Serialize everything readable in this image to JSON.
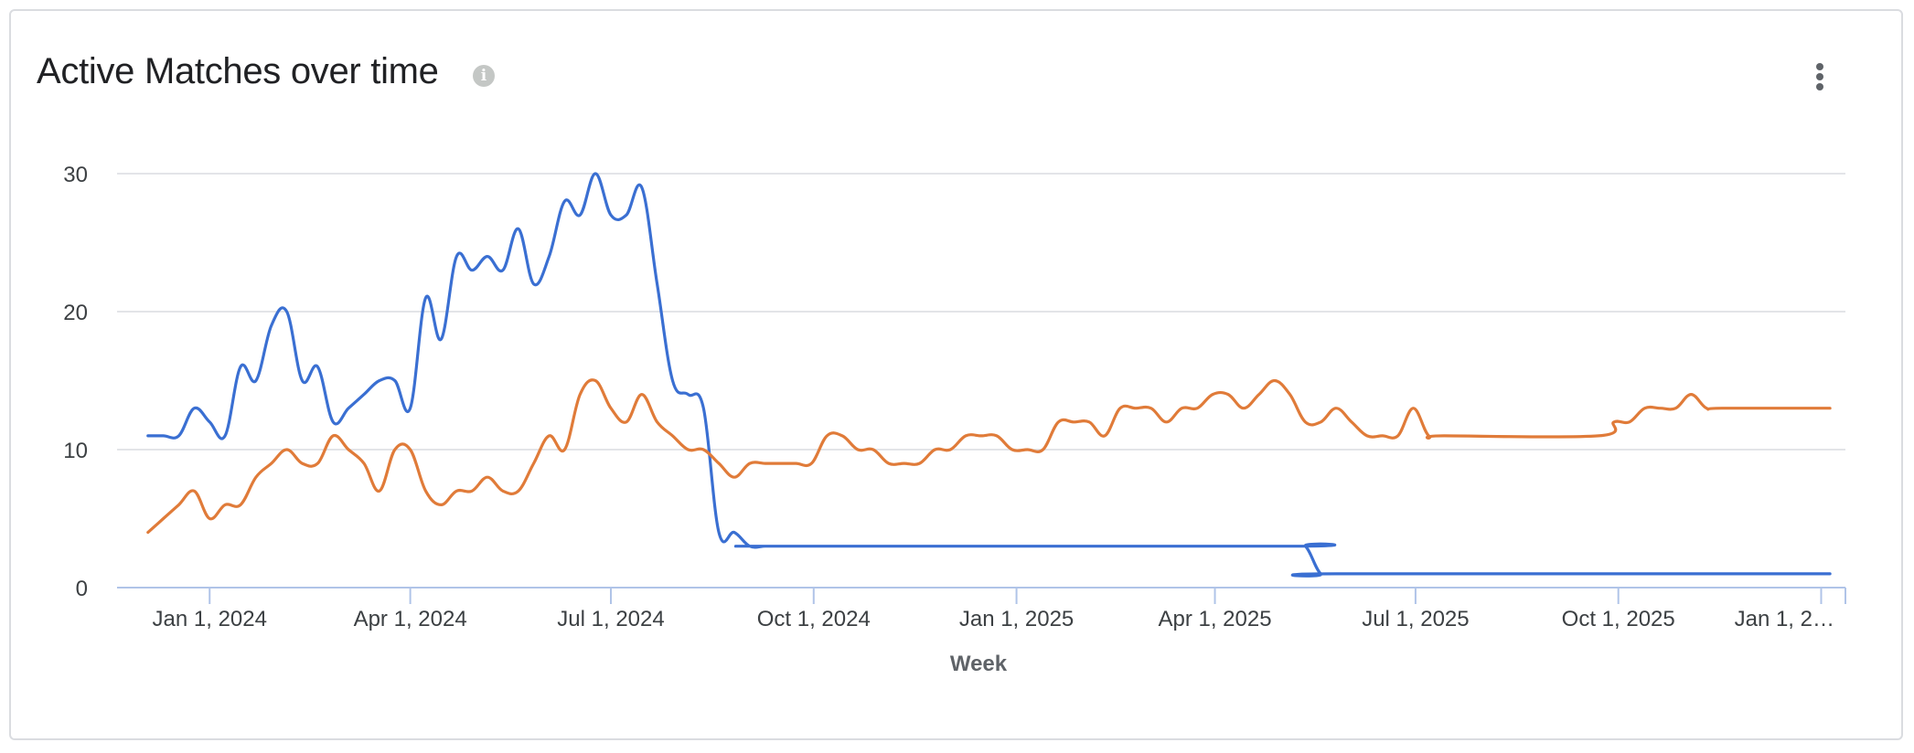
{
  "header": {
    "title": "Active Matches over time",
    "info_icon": "info-icon",
    "menu_icon": "more-vert-icon"
  },
  "chart_data": {
    "type": "line",
    "title": "Active Matches over time",
    "xlabel": "Week",
    "ylabel": "",
    "ylim": [
      0,
      30
    ],
    "yticks": [
      0,
      10,
      20,
      30
    ],
    "xlim": [
      "2023-11-20",
      "2026-01-12"
    ],
    "x_tick_dates": [
      "2024-01-01",
      "2024-04-01",
      "2024-07-01",
      "2024-10-01",
      "2025-01-01",
      "2025-04-01",
      "2025-07-01",
      "2025-10-01",
      "2026-01-01"
    ],
    "x_tick_labels": [
      "Jan 1, 2024",
      "Apr 1, 2024",
      "Jul 1, 2024",
      "Oct 1, 2024",
      "Jan 1, 2025",
      "Apr 1, 2025",
      "Jul 1, 2025",
      "Oct 1, 2025",
      "Jan 1, 2…"
    ],
    "grid": true,
    "legend": "none",
    "series": [
      {
        "color": "#3a6fd2",
        "points": [
          [
            "2023-12-04",
            11
          ],
          [
            "2023-12-11",
            11
          ],
          [
            "2023-12-18",
            11
          ],
          [
            "2023-12-25",
            13
          ],
          [
            "2024-01-01",
            12
          ],
          [
            "2024-01-08",
            11
          ],
          [
            "2024-01-15",
            16
          ],
          [
            "2024-01-22",
            15
          ],
          [
            "2024-01-29",
            19
          ],
          [
            "2024-02-05",
            20
          ],
          [
            "2024-02-12",
            15
          ],
          [
            "2024-02-19",
            16
          ],
          [
            "2024-02-26",
            12
          ],
          [
            "2024-03-04",
            13
          ],
          [
            "2024-03-11",
            14
          ],
          [
            "2024-03-18",
            15
          ],
          [
            "2024-03-25",
            15
          ],
          [
            "2024-04-01",
            13
          ],
          [
            "2024-04-08",
            21
          ],
          [
            "2024-04-15",
            18
          ],
          [
            "2024-04-22",
            24
          ],
          [
            "2024-04-29",
            23
          ],
          [
            "2024-05-06",
            24
          ],
          [
            "2024-05-13",
            23
          ],
          [
            "2024-05-20",
            26
          ],
          [
            "2024-05-27",
            22
          ],
          [
            "2024-06-03",
            24
          ],
          [
            "2024-06-10",
            28
          ],
          [
            "2024-06-17",
            27
          ],
          [
            "2024-06-24",
            30
          ],
          [
            "2024-07-01",
            27
          ],
          [
            "2024-07-08",
            27
          ],
          [
            "2024-07-15",
            29
          ],
          [
            "2024-07-22",
            22
          ],
          [
            "2024-07-29",
            15
          ],
          [
            "2024-08-05",
            14
          ],
          [
            "2024-08-12",
            13
          ],
          [
            "2024-08-19",
            4
          ],
          [
            "2024-08-26",
            4
          ],
          [
            "2024-09-02",
            3
          ],
          [
            "2024-09-09",
            3
          ],
          [
            "2024-09-16",
            3
          ],
          [
            "2025-05-05",
            3
          ],
          [
            "2025-05-12",
            3
          ],
          [
            "2025-05-19",
            1
          ],
          [
            "2025-05-26",
            1
          ],
          [
            "2026-01-05",
            1
          ]
        ]
      },
      {
        "color": "#e07b39",
        "points": [
          [
            "2023-12-04",
            4
          ],
          [
            "2023-12-11",
            5
          ],
          [
            "2023-12-18",
            6
          ],
          [
            "2023-12-25",
            7
          ],
          [
            "2024-01-01",
            5
          ],
          [
            "2024-01-08",
            6
          ],
          [
            "2024-01-15",
            6
          ],
          [
            "2024-01-22",
            8
          ],
          [
            "2024-01-29",
            9
          ],
          [
            "2024-02-05",
            10
          ],
          [
            "2024-02-12",
            9
          ],
          [
            "2024-02-19",
            9
          ],
          [
            "2024-02-26",
            11
          ],
          [
            "2024-03-04",
            10
          ],
          [
            "2024-03-11",
            9
          ],
          [
            "2024-03-18",
            7
          ],
          [
            "2024-03-25",
            10
          ],
          [
            "2024-04-01",
            10
          ],
          [
            "2024-04-08",
            7
          ],
          [
            "2024-04-15",
            6
          ],
          [
            "2024-04-22",
            7
          ],
          [
            "2024-04-29",
            7
          ],
          [
            "2024-05-06",
            8
          ],
          [
            "2024-05-13",
            7
          ],
          [
            "2024-05-20",
            7
          ],
          [
            "2024-05-27",
            9
          ],
          [
            "2024-06-03",
            11
          ],
          [
            "2024-06-10",
            10
          ],
          [
            "2024-06-17",
            14
          ],
          [
            "2024-06-24",
            15
          ],
          [
            "2024-07-01",
            13
          ],
          [
            "2024-07-08",
            12
          ],
          [
            "2024-07-15",
            14
          ],
          [
            "2024-07-22",
            12
          ],
          [
            "2024-07-29",
            11
          ],
          [
            "2024-08-05",
            10
          ],
          [
            "2024-08-12",
            10
          ],
          [
            "2024-08-19",
            9
          ],
          [
            "2024-08-26",
            8
          ],
          [
            "2024-09-02",
            9
          ],
          [
            "2024-09-09",
            9
          ],
          [
            "2024-09-16",
            9
          ],
          [
            "2024-09-23",
            9
          ],
          [
            "2024-09-30",
            9
          ],
          [
            "2024-10-07",
            11
          ],
          [
            "2024-10-14",
            11
          ],
          [
            "2024-10-21",
            10
          ],
          [
            "2024-10-28",
            10
          ],
          [
            "2024-11-04",
            9
          ],
          [
            "2024-11-11",
            9
          ],
          [
            "2024-11-18",
            9
          ],
          [
            "2024-11-25",
            10
          ],
          [
            "2024-12-02",
            10
          ],
          [
            "2024-12-09",
            11
          ],
          [
            "2024-12-16",
            11
          ],
          [
            "2024-12-23",
            11
          ],
          [
            "2024-12-30",
            10
          ],
          [
            "2025-01-06",
            10
          ],
          [
            "2025-01-13",
            10
          ],
          [
            "2025-01-20",
            12
          ],
          [
            "2025-01-27",
            12
          ],
          [
            "2025-02-03",
            12
          ],
          [
            "2025-02-10",
            11
          ],
          [
            "2025-02-17",
            13
          ],
          [
            "2025-02-24",
            13
          ],
          [
            "2025-03-03",
            13
          ],
          [
            "2025-03-10",
            12
          ],
          [
            "2025-03-17",
            13
          ],
          [
            "2025-03-24",
            13
          ],
          [
            "2025-03-31",
            14
          ],
          [
            "2025-04-07",
            14
          ],
          [
            "2025-04-14",
            13
          ],
          [
            "2025-04-21",
            14
          ],
          [
            "2025-04-28",
            15
          ],
          [
            "2025-05-05",
            14
          ],
          [
            "2025-05-12",
            12
          ],
          [
            "2025-05-19",
            12
          ],
          [
            "2025-05-26",
            13
          ],
          [
            "2025-06-02",
            12
          ],
          [
            "2025-06-09",
            11
          ],
          [
            "2025-06-16",
            11
          ],
          [
            "2025-06-23",
            11
          ],
          [
            "2025-06-30",
            13
          ],
          [
            "2025-07-07",
            11
          ],
          [
            "2025-07-14",
            11
          ],
          [
            "2025-09-22",
            11
          ],
          [
            "2025-09-29",
            12
          ],
          [
            "2025-10-06",
            12
          ],
          [
            "2025-10-13",
            13
          ],
          [
            "2025-10-20",
            13
          ],
          [
            "2025-10-27",
            13
          ],
          [
            "2025-11-03",
            14
          ],
          [
            "2025-11-10",
            13
          ],
          [
            "2025-11-17",
            13
          ],
          [
            "2026-01-05",
            13
          ]
        ]
      }
    ]
  }
}
